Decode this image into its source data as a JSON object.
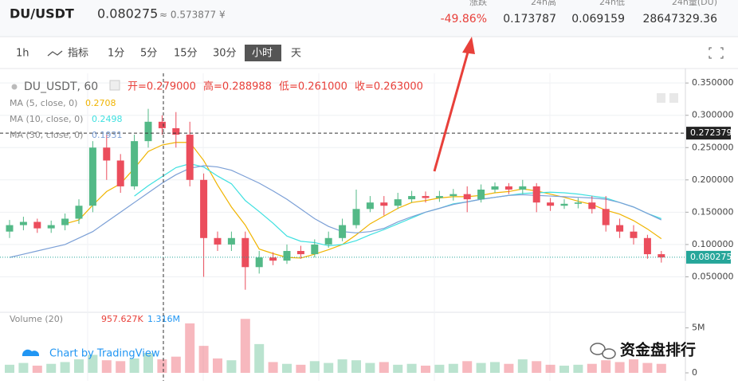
{
  "header": {
    "pair": "DU/USDT",
    "price": "0.080275",
    "approx": "≈ 0.573877 ¥",
    "stats": [
      {
        "label": "涨跌",
        "value": "-49.86%"
      },
      {
        "label": "24h高",
        "value": "0.173787"
      },
      {
        "label": "24h低",
        "value": "0.069159"
      },
      {
        "label": "24h量(DU)",
        "value": "28647329.36"
      }
    ]
  },
  "toolbar": {
    "items": [
      "1h",
      "指标",
      "1分",
      "5分",
      "15分",
      "30分",
      "小时",
      "天"
    ],
    "active": "小时"
  },
  "chart_data": {
    "type": "candlestick",
    "title": "DU_USDT, 60",
    "ohlc_legend": [
      "开=0.279000",
      "高=0.288988",
      "低=0.261000",
      "收=0.263000"
    ],
    "ylim": [
      0,
      0.365
    ],
    "yticks": [
      {
        "value": 0.05,
        "label": "0.050000"
      },
      {
        "value": 0.1,
        "label": "0.100000"
      },
      {
        "value": 0.15,
        "label": "0.150000"
      },
      {
        "value": 0.2,
        "label": "0.200000"
      },
      {
        "value": 0.25,
        "label": "0.250000"
      },
      {
        "value": 0.3,
        "label": "0.300000"
      },
      {
        "value": 0.35,
        "label": "0.350000"
      }
    ],
    "grid": true,
    "up_color": "#53b987",
    "down_color": "#eb4d5c",
    "crosshair_price": {
      "value": 0.272379,
      "label": "0.272379"
    },
    "last_price": {
      "value": 0.080275,
      "label": "0.080275"
    },
    "open": [
      0.12,
      0.13,
      0.135,
      0.125,
      0.13,
      0.14,
      0.16,
      0.25,
      0.23,
      0.19,
      0.26,
      0.29,
      0.28,
      0.27,
      0.2,
      0.11,
      0.1,
      0.11,
      0.065,
      0.08,
      0.075,
      0.09,
      0.085,
      0.1,
      0.11,
      0.13,
      0.155,
      0.165,
      0.16,
      0.17,
      0.175,
      0.172,
      0.175,
      0.178,
      0.17,
      0.185,
      0.19,
      0.185,
      0.19,
      0.165,
      0.16,
      0.163,
      0.165,
      0.155,
      0.13,
      0.12,
      0.11,
      0.085
    ],
    "high": [
      0.138,
      0.143,
      0.14,
      0.137,
      0.148,
      0.17,
      0.26,
      0.27,
      0.24,
      0.27,
      0.31,
      0.3,
      0.305,
      0.29,
      0.21,
      0.12,
      0.12,
      0.12,
      0.09,
      0.088,
      0.1,
      0.098,
      0.108,
      0.12,
      0.14,
      0.185,
      0.175,
      0.175,
      0.18,
      0.183,
      0.182,
      0.183,
      0.186,
      0.19,
      0.193,
      0.196,
      0.195,
      0.2,
      0.195,
      0.172,
      0.17,
      0.172,
      0.175,
      0.175,
      0.14,
      0.13,
      0.115,
      0.09
    ],
    "low": [
      0.11,
      0.122,
      0.118,
      0.118,
      0.122,
      0.132,
      0.15,
      0.2,
      0.18,
      0.185,
      0.25,
      0.27,
      0.25,
      0.19,
      0.05,
      0.09,
      0.09,
      0.03,
      0.055,
      0.068,
      0.07,
      0.078,
      0.08,
      0.095,
      0.105,
      0.125,
      0.15,
      0.145,
      0.155,
      0.165,
      0.165,
      0.166,
      0.168,
      0.15,
      0.165,
      0.18,
      0.178,
      0.178,
      0.15,
      0.152,
      0.155,
      0.156,
      0.148,
      0.12,
      0.11,
      0.1,
      0.078,
      0.072
    ],
    "close": [
      0.13,
      0.135,
      0.125,
      0.13,
      0.14,
      0.16,
      0.25,
      0.23,
      0.19,
      0.26,
      0.29,
      0.28,
      0.27,
      0.2,
      0.11,
      0.1,
      0.11,
      0.065,
      0.08,
      0.075,
      0.09,
      0.085,
      0.1,
      0.11,
      0.13,
      0.155,
      0.165,
      0.16,
      0.17,
      0.175,
      0.172,
      0.175,
      0.178,
      0.17,
      0.185,
      0.19,
      0.185,
      0.19,
      0.165,
      0.16,
      0.163,
      0.165,
      0.155,
      0.13,
      0.12,
      0.11,
      0.085,
      0.08
    ],
    "moving_averages": [
      {
        "name": "MA (5, close, 0)",
        "reading": "0.2708",
        "color": "#f0b400",
        "values": [
          null,
          null,
          null,
          null,
          0.132,
          0.138,
          0.161,
          0.182,
          0.194,
          0.218,
          0.244,
          0.254,
          0.258,
          0.258,
          0.23,
          0.192,
          0.158,
          0.13,
          0.093,
          0.086,
          0.08,
          0.079,
          0.085,
          0.092,
          0.1,
          0.115,
          0.132,
          0.144,
          0.156,
          0.165,
          0.168,
          0.172,
          0.174,
          0.174,
          0.176,
          0.18,
          0.182,
          0.186,
          0.183,
          0.178,
          0.173,
          0.167,
          0.162,
          0.153,
          0.147,
          0.137,
          0.124,
          0.109
        ]
      },
      {
        "name": "MA (10, close, 0)",
        "reading": "0.2498",
        "color": "#3ee0e0",
        "values": [
          null,
          null,
          null,
          null,
          null,
          null,
          null,
          null,
          null,
          0.175,
          0.191,
          0.205,
          0.219,
          0.225,
          0.22,
          0.206,
          0.194,
          0.168,
          0.151,
          0.133,
          0.113,
          0.105,
          0.103,
          0.098,
          0.1,
          0.106,
          0.115,
          0.123,
          0.132,
          0.141,
          0.15,
          0.156,
          0.163,
          0.166,
          0.17,
          0.173,
          0.176,
          0.179,
          0.18,
          0.181,
          0.18,
          0.178,
          0.175,
          0.172,
          0.165,
          0.158,
          0.148,
          0.14
        ]
      },
      {
        "name": "MA (30, close, 0)",
        "reading": "0.1931",
        "color": "#7b9fd6",
        "values": [
          0.08,
          0.085,
          0.09,
          0.095,
          0.1,
          0.11,
          0.12,
          0.135,
          0.15,
          0.165,
          0.18,
          0.195,
          0.208,
          0.218,
          0.222,
          0.22,
          0.215,
          0.205,
          0.195,
          0.183,
          0.17,
          0.155,
          0.14,
          0.128,
          0.12,
          0.118,
          0.12,
          0.125,
          0.135,
          0.143,
          0.15,
          0.156,
          0.162,
          0.166,
          0.17,
          0.173,
          0.176,
          0.177,
          0.176,
          0.175,
          0.174,
          0.173,
          0.172,
          0.17,
          0.165,
          0.158,
          0.148,
          0.138
        ]
      }
    ],
    "volume": {
      "name": "Volume (20)",
      "readings": [
        "957.627K",
        "1.316M"
      ],
      "ylim": [
        0,
        6200000
      ],
      "yticks": [
        0,
        {
          "value": 5000000,
          "label": "5M"
        }
      ],
      "values": [
        900000,
        1100000,
        800000,
        1000000,
        1200000,
        1500000,
        2000000,
        1400000,
        1300000,
        1600000,
        2200000,
        1500000,
        1800000,
        5500000,
        3000000,
        1600000,
        1400000,
        6000000,
        3200000,
        1200000,
        1000000,
        900000,
        1300000,
        1100000,
        1500000,
        1400000,
        1100000,
        1200000,
        900000,
        1000000,
        800000,
        900000,
        1000000,
        1300000,
        1100000,
        1200000,
        1000000,
        1500000,
        1300000,
        900000,
        800000,
        900000,
        1000000,
        1400000,
        1200000,
        1500000,
        1100000,
        1000000
      ]
    }
  },
  "watermark": "Chart by TradingView",
  "brand": "资金盘排行"
}
